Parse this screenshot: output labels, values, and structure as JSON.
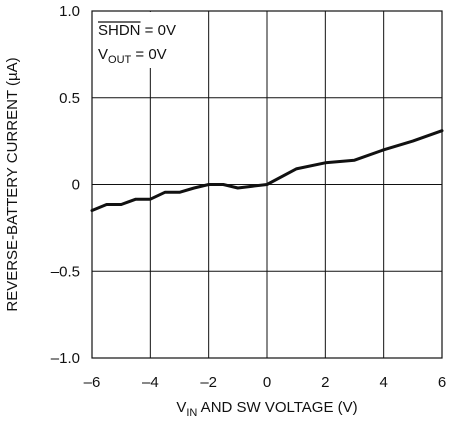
{
  "chart_data": {
    "type": "line",
    "xlabel": {
      "main": "V",
      "sub": "IN",
      "rest": " AND SW VOLTAGE (V)"
    },
    "ylabel": "REVERSE-BATTERY CURRENT (µA)",
    "xlim": [
      -6,
      6
    ],
    "ylim": [
      -1.0,
      1.0
    ],
    "x_ticks": [
      -6,
      -4,
      -2,
      0,
      2,
      4,
      6
    ],
    "x_tick_labels": [
      "–6",
      "–4",
      "–2",
      "0",
      "2",
      "4",
      "6"
    ],
    "y_ticks": [
      1.0,
      0.5,
      0,
      -0.5,
      -1.0
    ],
    "y_tick_labels": [
      "1.0",
      "0.5",
      "0",
      "–0.5",
      "–1.0"
    ],
    "grid": true,
    "legend_position": "top-left",
    "conditions": [
      {
        "main": "SHDN",
        "sub": "",
        "rest": " = 0V",
        "overline": true
      },
      {
        "main": "V",
        "sub": "OUT",
        "rest": " = 0V",
        "overline": false
      }
    ],
    "series": [
      {
        "x": [
          -6,
          -5.5,
          -5,
          -4.5,
          -4,
          -3.5,
          -3,
          -2.5,
          -2,
          -1.5,
          -1,
          -0.5,
          0,
          1,
          2,
          3,
          4,
          5,
          6
        ],
        "y": [
          -0.15,
          -0.115,
          -0.115,
          -0.085,
          -0.085,
          -0.045,
          -0.045,
          -0.02,
          0.0,
          0.0,
          -0.02,
          -0.01,
          0.0,
          0.09,
          0.125,
          0.14,
          0.2,
          0.25,
          0.31
        ]
      }
    ]
  }
}
